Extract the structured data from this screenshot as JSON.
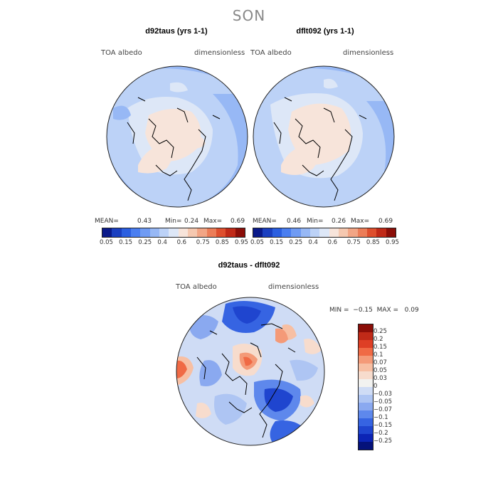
{
  "page": {
    "season": "SON"
  },
  "colors": {
    "abs_scale": [
      "#0a1a8a",
      "#1a3fc0",
      "#2b5fe0",
      "#4a7ef0",
      "#6f9bf3",
      "#97b8f5",
      "#bcd2f7",
      "#dde7f7",
      "#f7e4da",
      "#f5c8b0",
      "#f2a585",
      "#ec7d58",
      "#de4f2e",
      "#c02a18",
      "#8b0e08"
    ],
    "diff_scale": [
      "#8b0e08",
      "#c02a18",
      "#de3f25",
      "#f06a45",
      "#f49a78",
      "#f7bfa3",
      "#f7dccd",
      "#f2f2f0",
      "#cfdcf5",
      "#aec5f3",
      "#8aa9f0",
      "#5e88ec",
      "#3664e2",
      "#1f45cf",
      "#0c24b5",
      "#05127a"
    ]
  },
  "panels": {
    "left": {
      "title": "d92taus (yrs 1-1)",
      "variable": "TOA albedo",
      "units": "dimensionless",
      "stats": {
        "mean_label": "MEAN=",
        "mean": "0.43",
        "min_label": "Min=",
        "min": "0.24",
        "max_label": "Max=",
        "max": "0.69"
      }
    },
    "right": {
      "title": "dflt092 (yrs 1-1)",
      "variable": "TOA albedo",
      "units": "dimensionless",
      "stats": {
        "mean_label": "MEAN=",
        "mean": "0.46",
        "min_label": "Min=",
        "min": "0.26",
        "max_label": "Max=",
        "max": "0.69"
      }
    },
    "diff": {
      "title": "d92taus - dflt092",
      "variable": "TOA albedo",
      "units": "dimensionless",
      "minmax": "MIN =  −0.15  MAX =   0.09"
    }
  },
  "colorbar_abs_ticks": [
    "0.05",
    "0.15",
    "0.25",
    "0.4",
    "0.6",
    "0.75",
    "0.85",
    "0.95"
  ],
  "colorbar_diff_ticks": [
    "0.25",
    "0.2",
    "0.15",
    "0.1",
    "0.07",
    "0.05",
    "0.03",
    "0",
    "−0.03",
    "−0.05",
    "−0.07",
    "−0.1",
    "−0.15",
    "−0.2",
    "−0.25"
  ]
}
